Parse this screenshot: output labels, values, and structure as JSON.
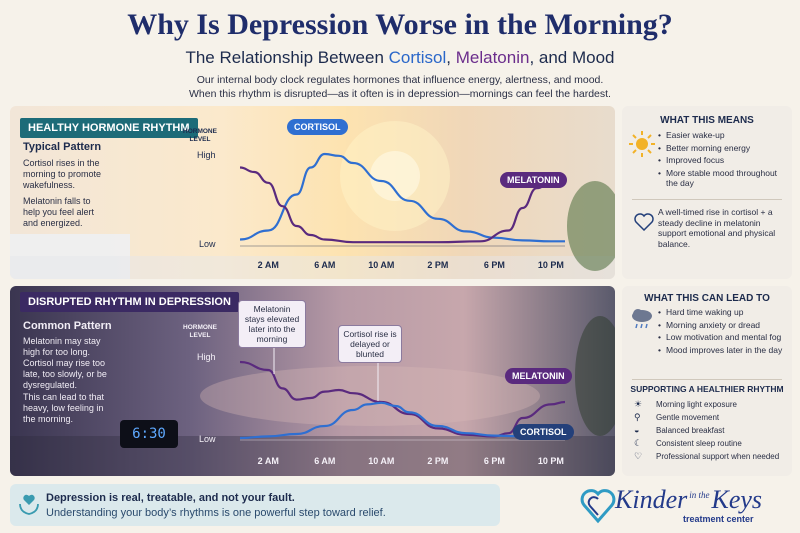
{
  "title": "Why Is Depression Worse in the Morning?",
  "subtitle": {
    "prefix": "The Relationship Between ",
    "cortisol": "Cortisol",
    "sep1": ", ",
    "melatonin": "Melatonin",
    "sep2": ", and Mood"
  },
  "intro": {
    "line1": "Our internal body clock regulates hormones that influence energy, alertness, and mood.",
    "line2": "When this rhythm is disrupted—as it often is in depression—mornings can feel the hardest."
  },
  "healthy": {
    "tag": "HEALTHY HORMONE RHYTHM",
    "pattern": "Typical Pattern",
    "desc1": "Cortisol rises in the morning to promote wakefulness.",
    "desc2": "Melatonin falls to help you feel alert and energized."
  },
  "disrupted": {
    "tag": "DISRUPTED RHYTHM IN DEPRESSION",
    "pattern": "Common Pattern",
    "desc1": "Melatonin may stay high for too long. Cortisol may rise too late, too slowly, or be dysregulated.",
    "desc2": "This can lead to that heavy, low feeling in the morning.",
    "callout_melatonin": "Melatonin stays elevated later into the morning",
    "callout_cortisol": "Cortisol rise is delayed or blunted",
    "clock_time": "6:30"
  },
  "axis": {
    "ytitle_1": "HORMONE",
    "ytitle_2": "LEVEL",
    "high": "High",
    "low": "Low"
  },
  "colors": {
    "cortisol": "#2f6fd1",
    "melatonin": "#5a2a7e"
  },
  "chart_data": [
    {
      "type": "line",
      "title": "HEALTHY HORMONE RHYTHM",
      "xlabel": "",
      "ylabel": "HORMONE LEVEL",
      "x_ticks": [
        "2 AM",
        "6 AM",
        "10 AM",
        "2 PM",
        "6 PM",
        "10 PM"
      ],
      "x_tick_hours": [
        2,
        6,
        10,
        14,
        18,
        22
      ],
      "xlim": [
        0,
        23
      ],
      "ylim": [
        0,
        1
      ],
      "y_ticks": [
        "Low",
        "High"
      ],
      "series": [
        {
          "name": "CORTISOL",
          "x": [
            0,
            2,
            4,
            5,
            6,
            7,
            8,
            10,
            12,
            14,
            16,
            18,
            20,
            22,
            23
          ],
          "values": [
            0.05,
            0.15,
            0.55,
            0.85,
            1.0,
            0.98,
            0.9,
            0.7,
            0.48,
            0.28,
            0.14,
            0.07,
            0.04,
            0.03,
            0.03
          ]
        },
        {
          "name": "MELATONIN",
          "x": [
            0,
            1,
            2,
            3,
            4,
            5,
            6,
            8,
            10,
            14,
            17,
            19,
            20,
            21,
            22,
            23
          ],
          "values": [
            0.85,
            0.8,
            0.68,
            0.42,
            0.2,
            0.1,
            0.05,
            0.02,
            0.02,
            0.02,
            0.03,
            0.15,
            0.4,
            0.62,
            0.68,
            0.68
          ]
        }
      ]
    },
    {
      "type": "line",
      "title": "DISRUPTED RHYTHM IN DEPRESSION",
      "xlabel": "",
      "ylabel": "HORMONE LEVEL",
      "x_ticks": [
        "2 AM",
        "6 AM",
        "10 AM",
        "2 PM",
        "6 PM",
        "10 PM"
      ],
      "x_tick_hours": [
        2,
        6,
        10,
        14,
        18,
        22
      ],
      "xlim": [
        0,
        23
      ],
      "ylim": [
        0,
        1
      ],
      "y_ticks": [
        "Low",
        "High"
      ],
      "series": [
        {
          "name": "MELATONIN",
          "x": [
            0,
            2,
            3,
            4,
            5,
            6,
            7,
            8,
            10,
            12,
            14,
            16,
            18,
            19,
            20,
            22,
            23
          ],
          "values": [
            0.95,
            0.85,
            0.62,
            0.48,
            0.5,
            0.58,
            0.6,
            0.56,
            0.45,
            0.3,
            0.12,
            0.04,
            0.02,
            0.06,
            0.25,
            0.42,
            0.45
          ]
        },
        {
          "name": "CORTISOL",
          "x": [
            0,
            2,
            4,
            6,
            8,
            9,
            10,
            11,
            12,
            14,
            16,
            18,
            20,
            22,
            23
          ],
          "values": [
            0.0,
            0.02,
            0.05,
            0.15,
            0.35,
            0.42,
            0.44,
            0.4,
            0.32,
            0.15,
            0.06,
            0.03,
            0.02,
            0.02,
            0.02
          ]
        }
      ]
    }
  ],
  "side_means": {
    "heading": "WHAT THIS MEANS",
    "items": [
      "Easier wake-up",
      "Better morning energy",
      "Improved focus",
      "More stable mood throughout the day"
    ],
    "note": "A well-timed rise in cortisol + a steady decline in melatonin support emotional and physical balance."
  },
  "side_leads": {
    "heading": "WHAT THIS CAN LEAD TO",
    "items": [
      "Hard time waking up",
      "Morning anxiety or dread",
      "Low motivation and mental fog",
      "Mood improves later in the day"
    ],
    "support_heading": "SUPPORTING A HEALTHIER RHYTHM",
    "support": [
      {
        "icon": "sun-icon",
        "text": "Morning light exposure"
      },
      {
        "icon": "walking-icon",
        "text": "Gentle movement"
      },
      {
        "icon": "bowl-icon",
        "text": "Balanced breakfast"
      },
      {
        "icon": "moon-icon",
        "text": "Consistent sleep routine"
      },
      {
        "icon": "heart-icon",
        "text": "Professional support when needed"
      }
    ]
  },
  "footer": {
    "line1": "Depression is real, treatable, and not your fault.",
    "line2": "Understanding your body’s rhythms is one powerful step toward relief."
  },
  "logo": {
    "main": "Kinder",
    "mid": "in the",
    "end": "Keys",
    "sub": "treatment center"
  }
}
